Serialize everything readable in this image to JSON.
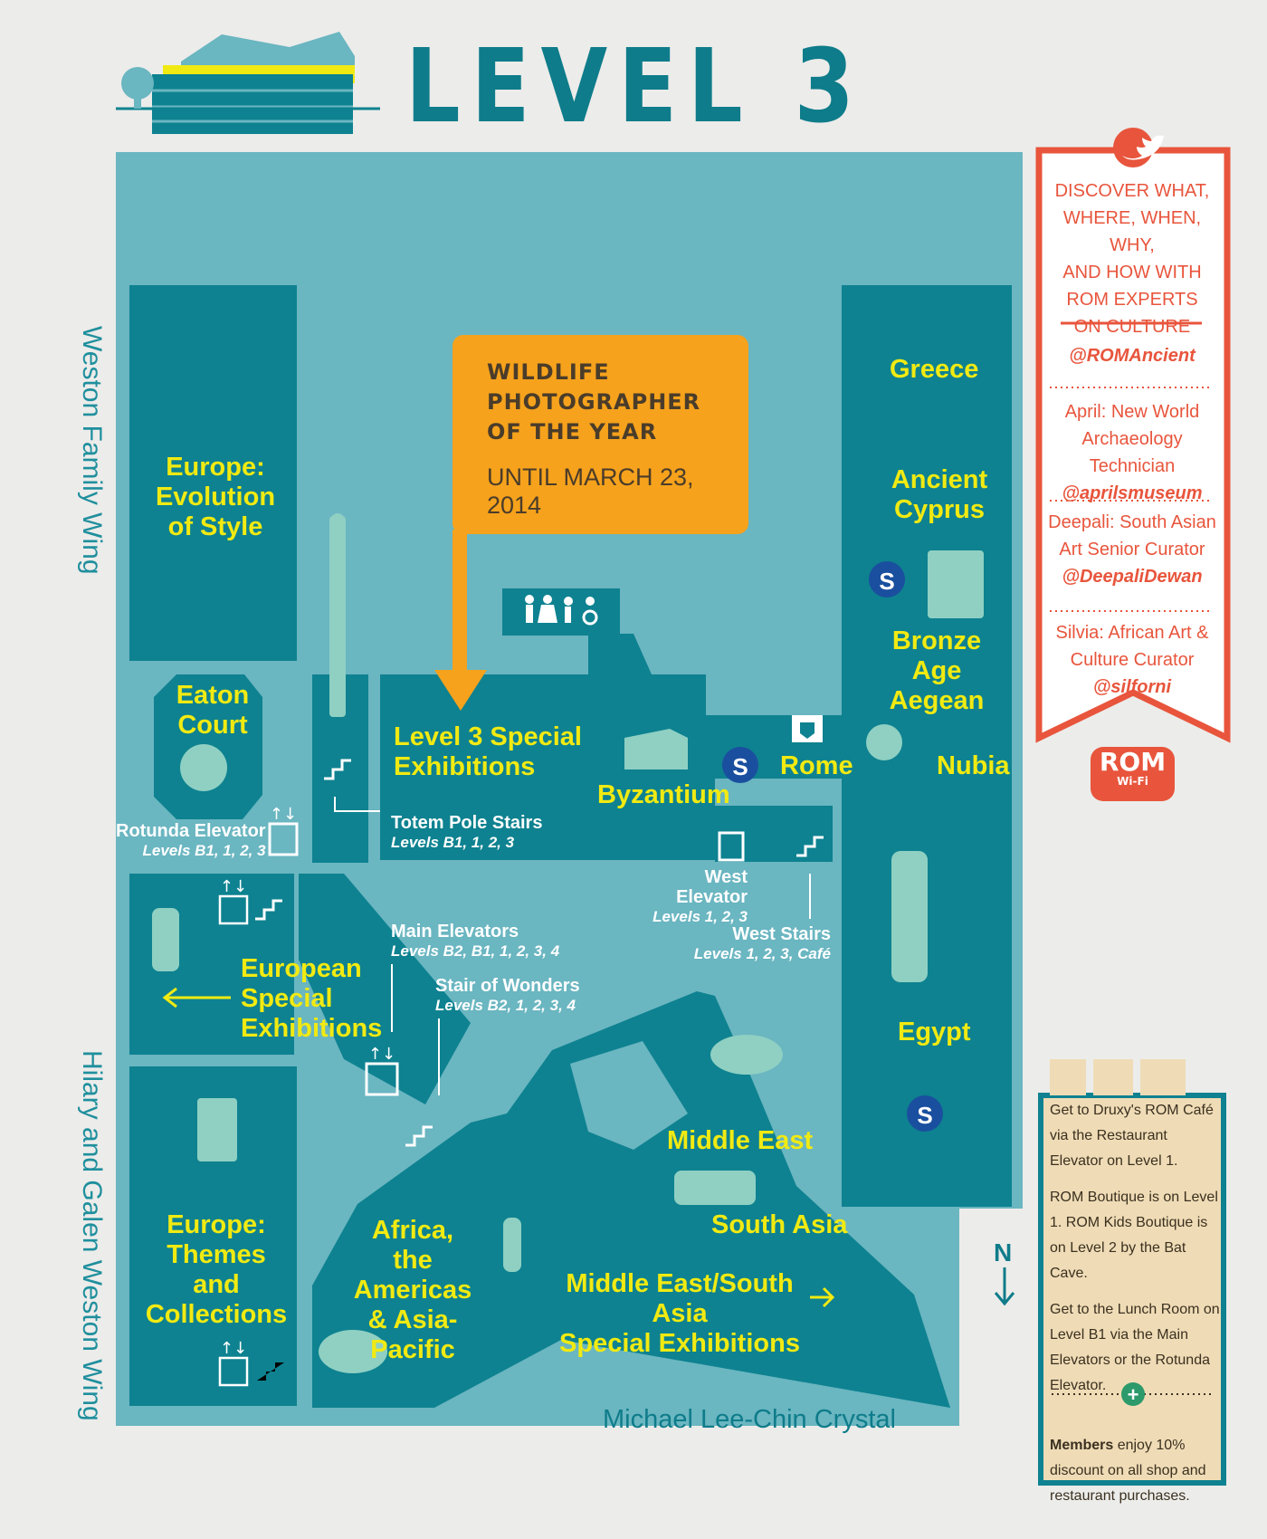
{
  "title": "LEVEL 3",
  "wings": {
    "left_top": "Weston Family Wing",
    "left_bottom": "Hilary and Galen Weston Wing",
    "crystal": "Michael Lee-Chin Crystal"
  },
  "callout": {
    "title_lines": [
      "WILDLIFE",
      "PHOTOGRAPHER",
      "OF THE YEAR"
    ],
    "dates": "UNTIL MARCH 23, 2014"
  },
  "galleries": {
    "europe_evolution": [
      "Europe:",
      "Evolution",
      "of Style"
    ],
    "eaton_court": [
      "Eaton",
      "Court"
    ],
    "level3_special": [
      "Level 3 Special",
      "Exhibitions"
    ],
    "byzantium": "Byzantium",
    "rome": "Rome",
    "greece": "Greece",
    "ancient_cyprus": [
      "Ancient",
      "Cyprus"
    ],
    "bronze_age": [
      "Bronze Age",
      "Aegean"
    ],
    "nubia": "Nubia",
    "egypt": "Egypt",
    "european_special": [
      "European",
      "Special",
      "Exhibitions"
    ],
    "europe_themes": [
      "Europe:",
      "Themes and",
      "Collections"
    ],
    "africa": [
      "Africa,",
      "the Americas",
      "& Asia-Pacific"
    ],
    "middle_east": "Middle East",
    "south_asia": "South Asia",
    "me_sa_special": [
      "Middle East/South Asia",
      "Special Exhibitions"
    ]
  },
  "services": {
    "rotunda_elevator": {
      "name": "Rotunda Elevator",
      "levels": "Levels B1, 1, 2, 3"
    },
    "totem_stairs": {
      "name": "Totem Pole Stairs",
      "levels": "Levels B1, 1, 2, 3"
    },
    "west_elevator": {
      "name": "West Elevator",
      "levels": "Levels 1, 2, 3"
    },
    "west_stairs": {
      "name": "West Stairs",
      "levels": "Levels 1, 2, 3, Café"
    },
    "main_elevators": {
      "name": "Main Elevators",
      "levels": "Levels B2, B1, 1, 2, 3, 4"
    },
    "stair_of_wonders": {
      "name": "Stair of Wonders",
      "levels": "Levels B2, 1, 2, 3, 4"
    }
  },
  "twitter_panel": {
    "intro": [
      "DISCOVER WHAT,",
      "WHERE, WHEN, WHY,",
      "AND HOW WITH",
      "ROM EXPERTS",
      "ON CULTURE"
    ],
    "main_handle": "@ROMAncient",
    "experts": [
      {
        "lines": [
          "April: New World",
          "Archaeology Technician"
        ],
        "handle": "@aprilsmuseum"
      },
      {
        "lines": [
          "Deepali: South Asian",
          "Art Senior Curator"
        ],
        "handle": "@DeepaliDewan"
      },
      {
        "lines": [
          "Silvia: African Art &",
          "Culture Curator"
        ],
        "handle": "@silforni"
      }
    ],
    "badge": "ROM",
    "badge_sub": "Wi-Fi"
  },
  "info_panel": {
    "cafe": "Get to Druxy's ROM Café via the Restaurant Elevator on Level 1.",
    "boutique": "ROM Boutique is on Level 1. ROM Kids Boutique is on Level 2 by the Bat Cave.",
    "lunch": "Get to the Lunch Room on Level B1 via the Main Elevators or the Rotunda Elevator.",
    "members_bold": "Members",
    "members_rest": " enjoy 10% discount on all shop and restaurant purchases."
  },
  "north": "N",
  "colors": {
    "background": "#ececea",
    "floor": "#6ab6c1",
    "gallery": "#0e8290",
    "gallery_text": "#f1ea12",
    "callout": "#f6a21c",
    "twitter": "#e8553c",
    "info_panel": "#efdcb6"
  },
  "icons": [
    "building-icon",
    "tree-icon",
    "twitter-bird-icon",
    "washroom-icon",
    "elevator-icon",
    "stairs-icon",
    "accessible-icon",
    "security-s-icon",
    "first-aid-icon",
    "fork-knife-icon",
    "gift-icon",
    "shop-icon",
    "plus-icon",
    "north-arrow-icon"
  ]
}
